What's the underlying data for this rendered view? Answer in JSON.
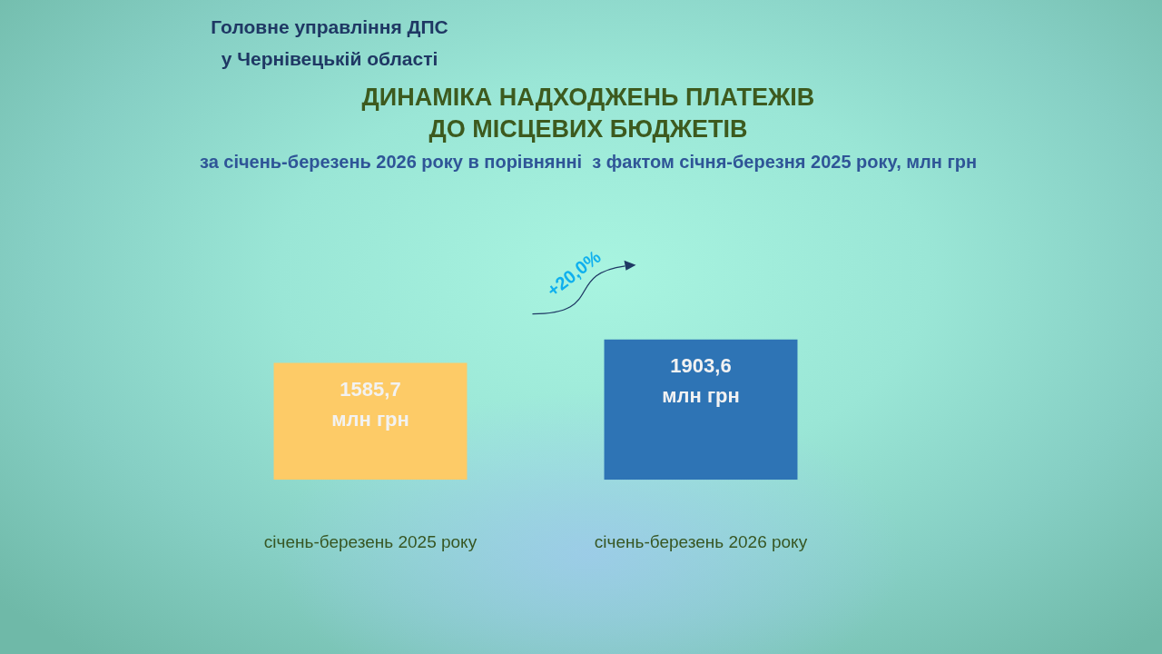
{
  "chart_data": {
    "type": "bar",
    "title": "ДИНАМІКА НАДХОДЖЕНЬ ПЛАТЕЖІВ\nДО МІСЦЕВИХ БЮДЖЕТІВ",
    "subtitle": "за січень-березень 2026 року в порівнянні  з фактом січня-березня 2025 року, млн грн",
    "categories": [
      "січень-березень 2025 року",
      "січень-березень 2026 року"
    ],
    "values": [
      1585.7,
      1903.6
    ],
    "colors": [
      "#fdcb67",
      "#2e74b5"
    ],
    "value_labels": [
      "1585,7\nмлн грн",
      "1903,6\nмлн грн"
    ],
    "annotations": [
      "Головне управління ДПС\nу Чернівецькій області",
      "+20,0%"
    ],
    "tick_labels": "x"
  }
}
